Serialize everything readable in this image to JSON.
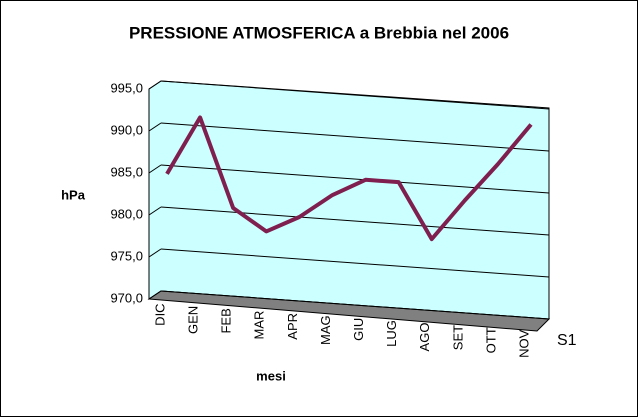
{
  "chart_data": {
    "type": "line",
    "title": "PRESSIONE ATMOSFERICA a Brebbia nel 2006",
    "y_label": "hPa",
    "x_label": "mesi",
    "categories": [
      "DIC",
      "GEN",
      "FEB",
      "MAR",
      "APR",
      "MAG",
      "GIU",
      "LUG",
      "AGO",
      "SET",
      "OTT",
      "NOV"
    ],
    "series": [
      {
        "name": "S1",
        "color": "#7f1f4f",
        "values": [
          984,
          991,
          980.5,
          978,
          980,
          982.9,
          985,
          985,
          978.5,
          983.4,
          988,
          993
        ]
      }
    ],
    "ylim": [
      970,
      995
    ],
    "yticks": [
      {
        "value": 970,
        "label": "970,0"
      },
      {
        "value": 975,
        "label": "975,0"
      },
      {
        "value": 980,
        "label": "980,0"
      },
      {
        "value": 985,
        "label": "985,0"
      },
      {
        "value": 990,
        "label": "990,0"
      },
      {
        "value": 995,
        "label": "995,0"
      }
    ],
    "grid": true
  }
}
